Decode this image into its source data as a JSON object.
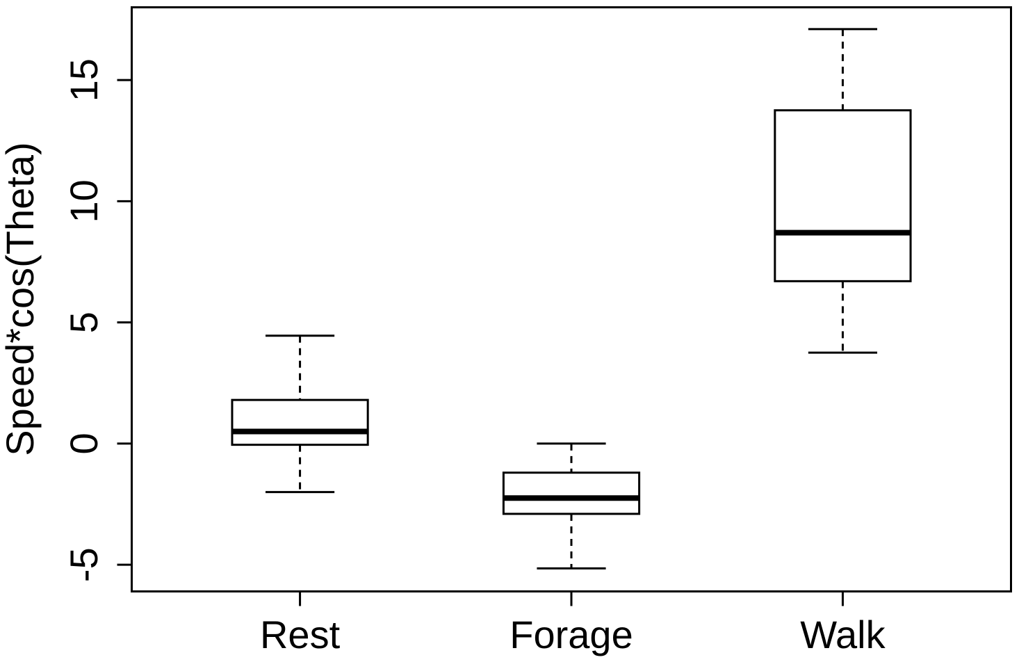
{
  "figure": {
    "background": "#ffffff",
    "foreground": "#000000"
  },
  "chart_data": {
    "type": "boxplot",
    "title": "",
    "xlabel": "",
    "ylabel": "Speed*cos(Theta)",
    "categories": [
      "Rest",
      "Forage",
      "Walk"
    ],
    "x_positions": [
      1,
      2,
      3
    ],
    "series": [
      {
        "name": "Rest",
        "min": -2.0,
        "q1": -0.05,
        "median": 0.5,
        "q3": 1.8,
        "max": 4.45,
        "outliers": []
      },
      {
        "name": "Forage",
        "min": -5.15,
        "q1": -2.9,
        "median": -2.25,
        "q3": -1.2,
        "max": 0.0,
        "outliers": []
      },
      {
        "name": "Walk",
        "min": 3.75,
        "q1": 6.7,
        "median": 8.7,
        "q3": 13.75,
        "max": 17.1,
        "outliers": []
      }
    ],
    "yticks": [
      -5,
      0,
      5,
      10,
      15
    ],
    "ylim": [
      -6.1,
      18.0
    ],
    "xlim": [
      0.38,
      3.62
    ],
    "grid": false,
    "legend": null,
    "box_fill": "#ffffff",
    "line_color": "#000000"
  }
}
